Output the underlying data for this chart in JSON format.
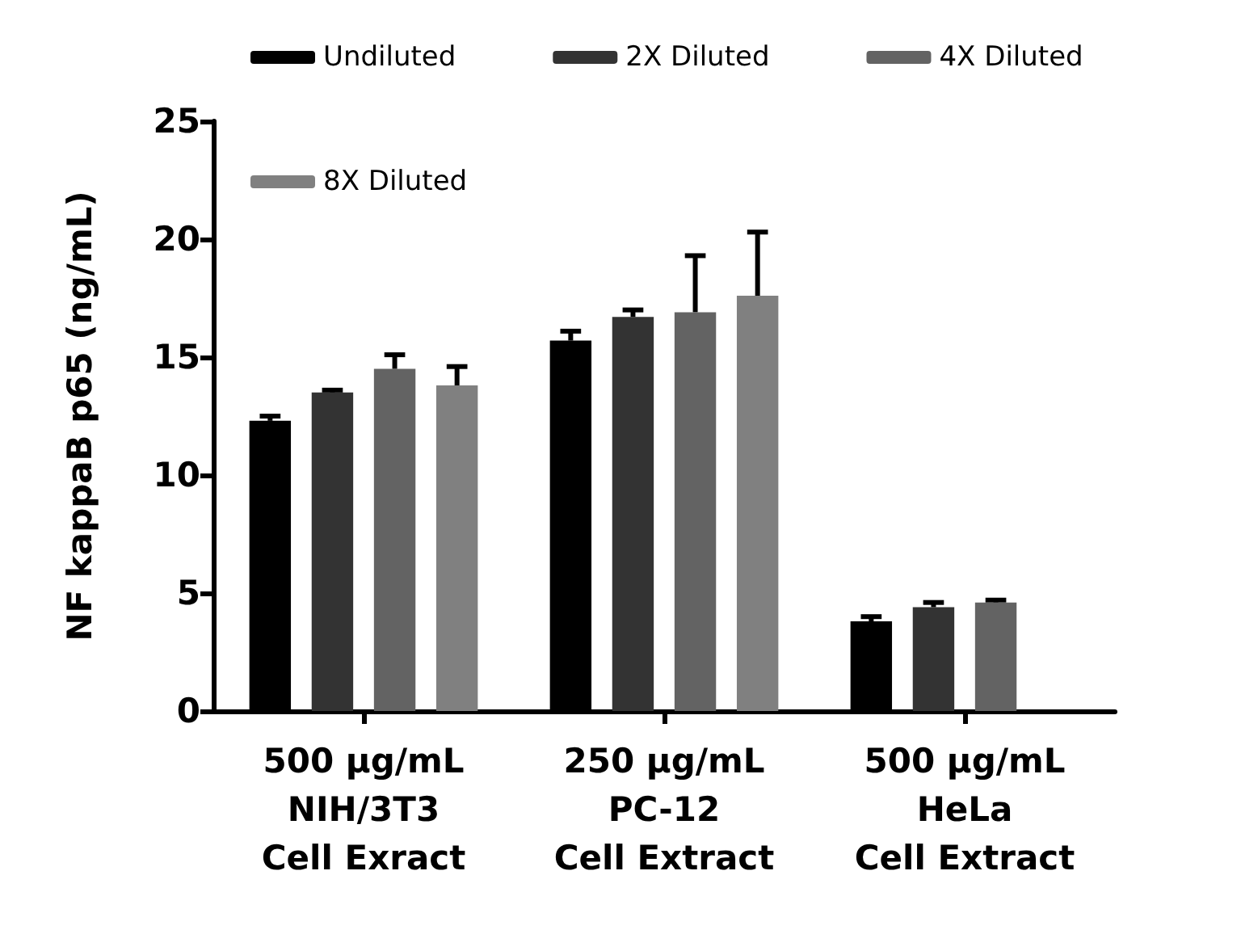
{
  "chart_data": {
    "type": "bar",
    "ylabel": "NF kappaB p65 (ng/mL)",
    "categories": [
      "500 µg/mL\nNIH/3T3\nCell Exract",
      "250 µg/mL\nPC-12\nCell Extract",
      "500 µg/mL\nHeLa\nCell Extract"
    ],
    "series": [
      {
        "name": "Undiluted",
        "color": "#000000",
        "values": [
          12.3,
          15.7,
          3.8
        ],
        "errors": [
          [
            12.3,
            12.5
          ],
          [
            15.7,
            16.1
          ],
          [
            3.8,
            4.0
          ]
        ]
      },
      {
        "name": "2X Diluted",
        "color": "#333333",
        "values": [
          13.5,
          16.7,
          4.4
        ],
        "errors": [
          [
            13.5,
            13.6
          ],
          [
            16.7,
            17.0
          ],
          [
            4.4,
            4.6
          ]
        ]
      },
      {
        "name": "4X Diluted",
        "color": "#636363",
        "values": [
          14.5,
          16.9,
          4.6
        ],
        "errors": [
          [
            14.5,
            15.1
          ],
          [
            16.9,
            19.3
          ],
          [
            4.6,
            4.7
          ]
        ]
      },
      {
        "name": "8X Diluted",
        "color": "#808080",
        "values": [
          13.8,
          17.6,
          null
        ],
        "errors": [
          [
            13.8,
            14.6
          ],
          [
            17.6,
            20.3
          ],
          null
        ]
      }
    ],
    "ylim": [
      0,
      25
    ],
    "yticks": [
      0,
      5,
      10,
      15,
      20,
      25
    ],
    "grid": false,
    "legend": "top"
  }
}
